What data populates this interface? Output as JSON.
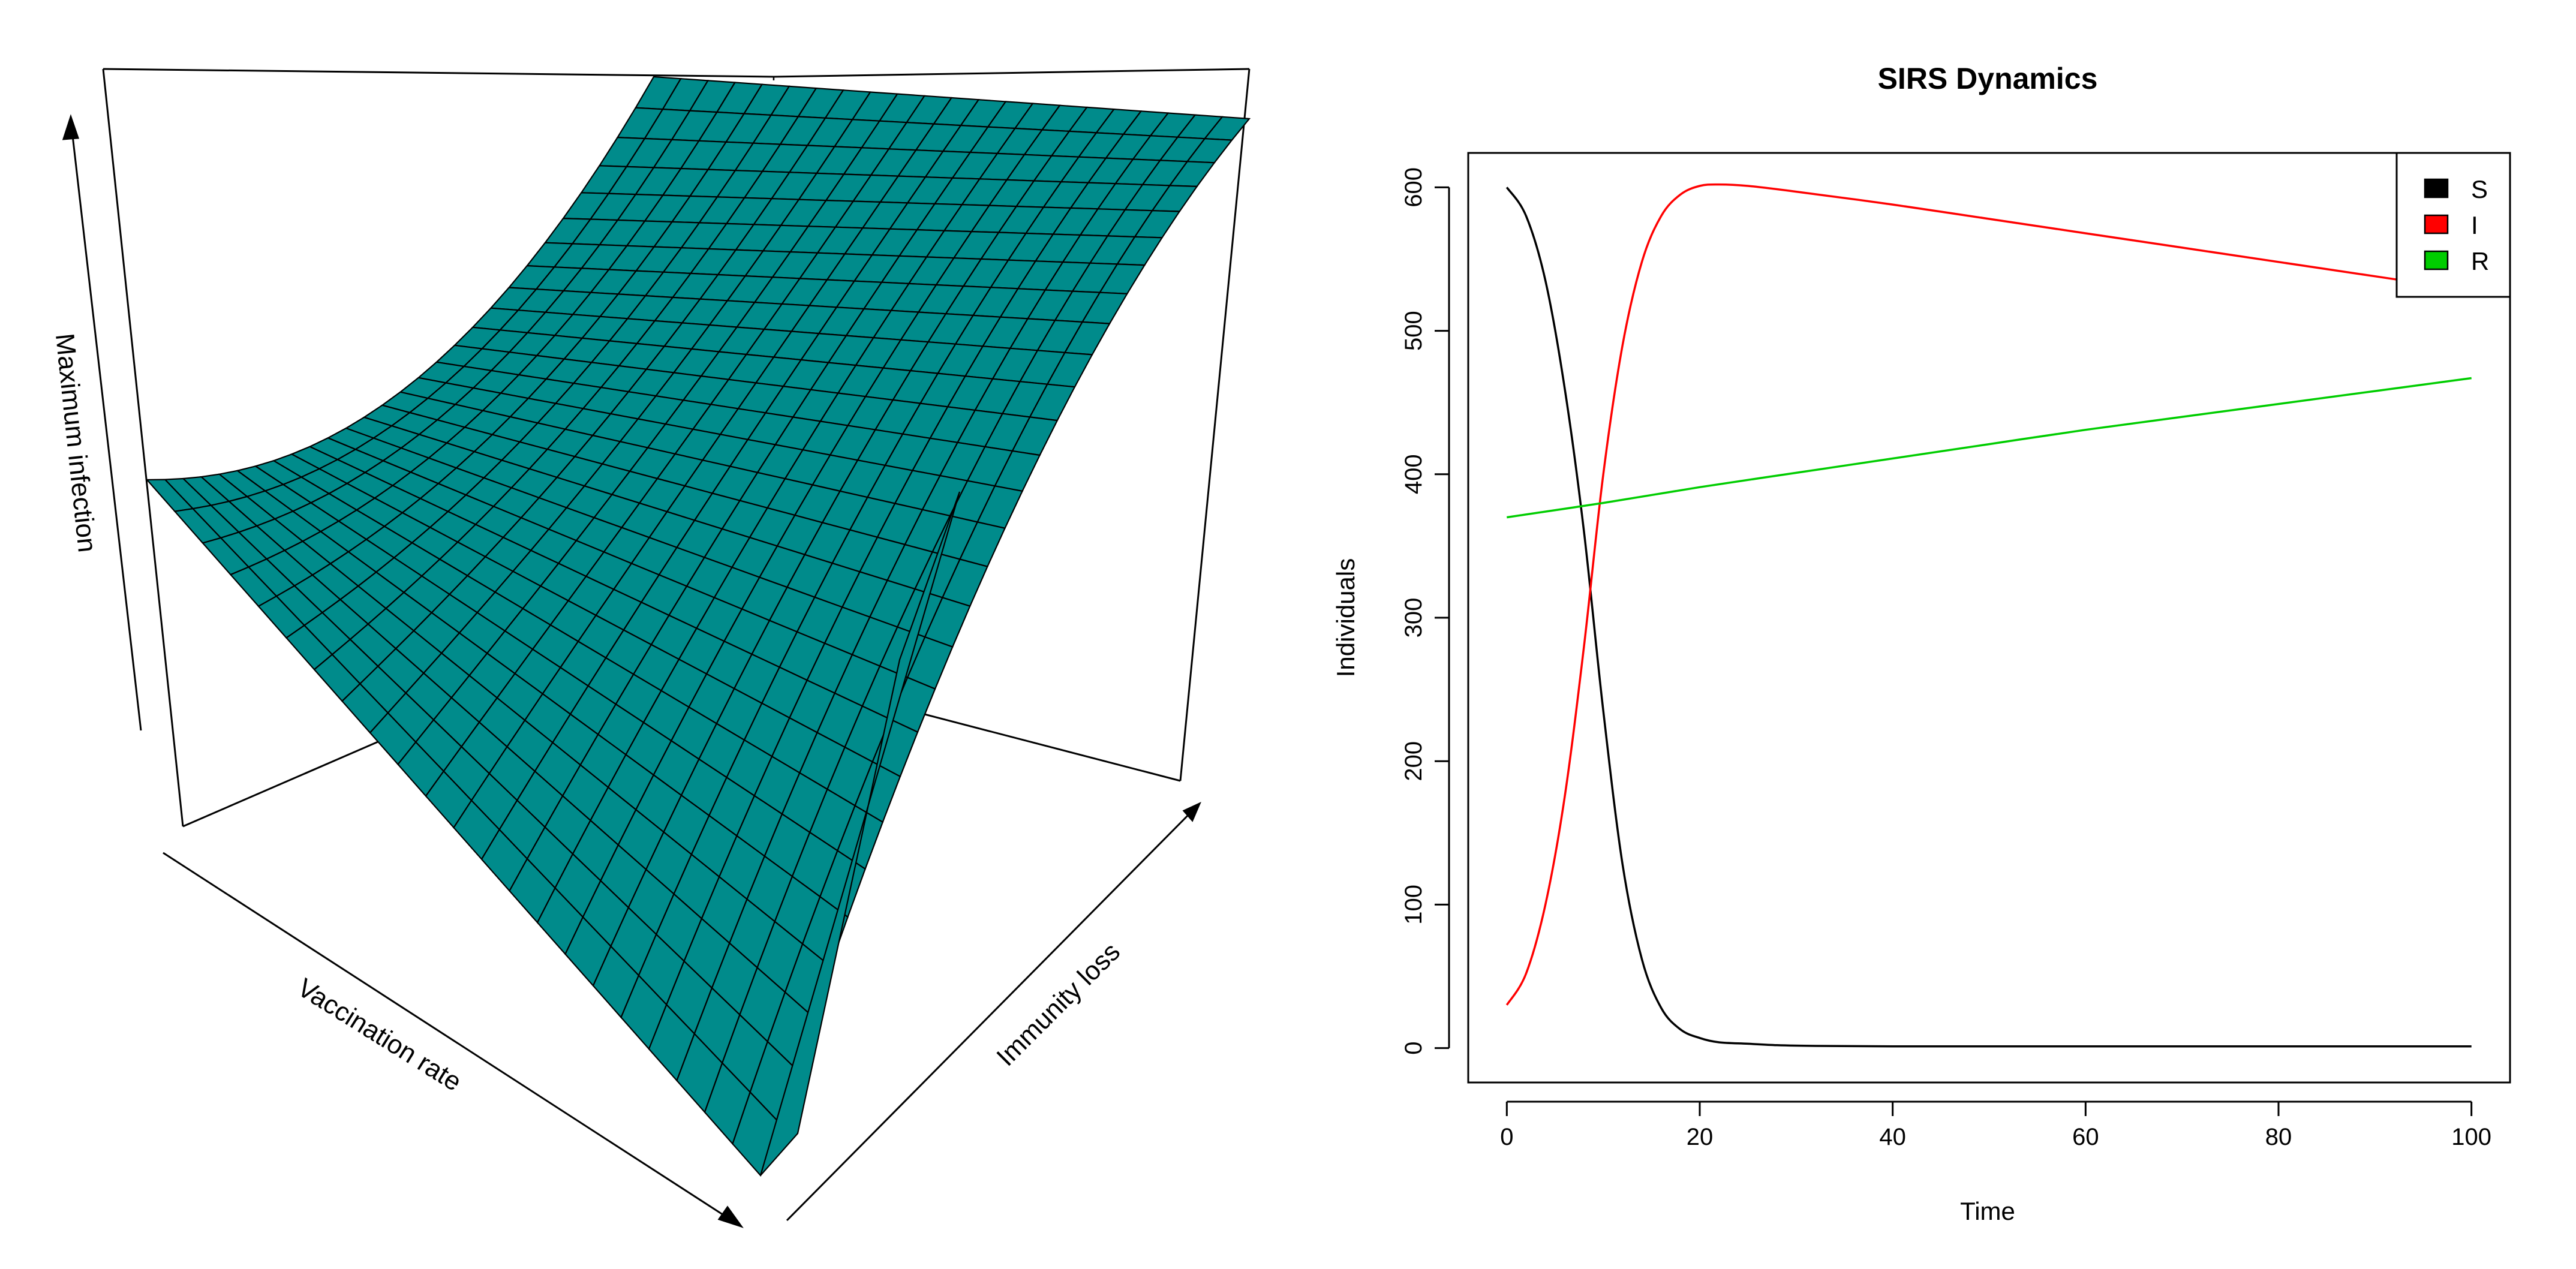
{
  "chart_data": [
    {
      "type": "surface",
      "title": "",
      "xlabel": "Vaccination rate",
      "ylabel": "Immunity loss",
      "zlabel": "Maximum infection",
      "grid_rows": 28,
      "grid_cols": 22,
      "surface_color": "#008b8b",
      "edge_color": "#000000"
    },
    {
      "type": "line",
      "title": "SIRS Dynamics",
      "xlabel": "Time",
      "ylabel": "Individuals",
      "xlim": [
        -4,
        104
      ],
      "ylim": [
        -24,
        624
      ],
      "xticks": [
        0,
        20,
        40,
        60,
        80,
        100
      ],
      "yticks": [
        0,
        100,
        200,
        300,
        400,
        500,
        600
      ],
      "legend_position": "top-right",
      "grid": false,
      "series": [
        {
          "name": "S",
          "color": "#000000",
          "x": [
            0,
            2,
            4,
            6,
            8,
            10,
            12,
            14,
            16,
            18,
            20,
            22,
            25,
            28,
            32,
            40,
            50,
            60,
            70,
            80,
            90,
            100
          ],
          "values": [
            600,
            580,
            535,
            460,
            360,
            235,
            128,
            62,
            28,
            13,
            7,
            4,
            3,
            2,
            1.5,
            1.2,
            1.2,
            1.2,
            1.2,
            1.2,
            1.2,
            1.2
          ]
        },
        {
          "name": "I",
          "color": "#ff0000",
          "x": [
            0,
            2,
            4,
            6,
            8,
            10,
            12,
            14,
            16,
            18,
            20,
            22,
            25,
            30,
            40,
            50,
            60,
            70,
            80,
            90,
            100
          ],
          "values": [
            30,
            52,
            100,
            175,
            280,
            400,
            490,
            548,
            580,
            595,
            601,
            602,
            601,
            597,
            588,
            578,
            568,
            558,
            548,
            538,
            528
          ]
        },
        {
          "name": "R",
          "color": "#00cd00",
          "x": [
            0,
            10,
            20,
            30,
            40,
            50,
            60,
            70,
            80,
            90,
            100
          ],
          "values": [
            370,
            380,
            391,
            401,
            411,
            421,
            431,
            440,
            449,
            458,
            467
          ]
        }
      ]
    }
  ]
}
